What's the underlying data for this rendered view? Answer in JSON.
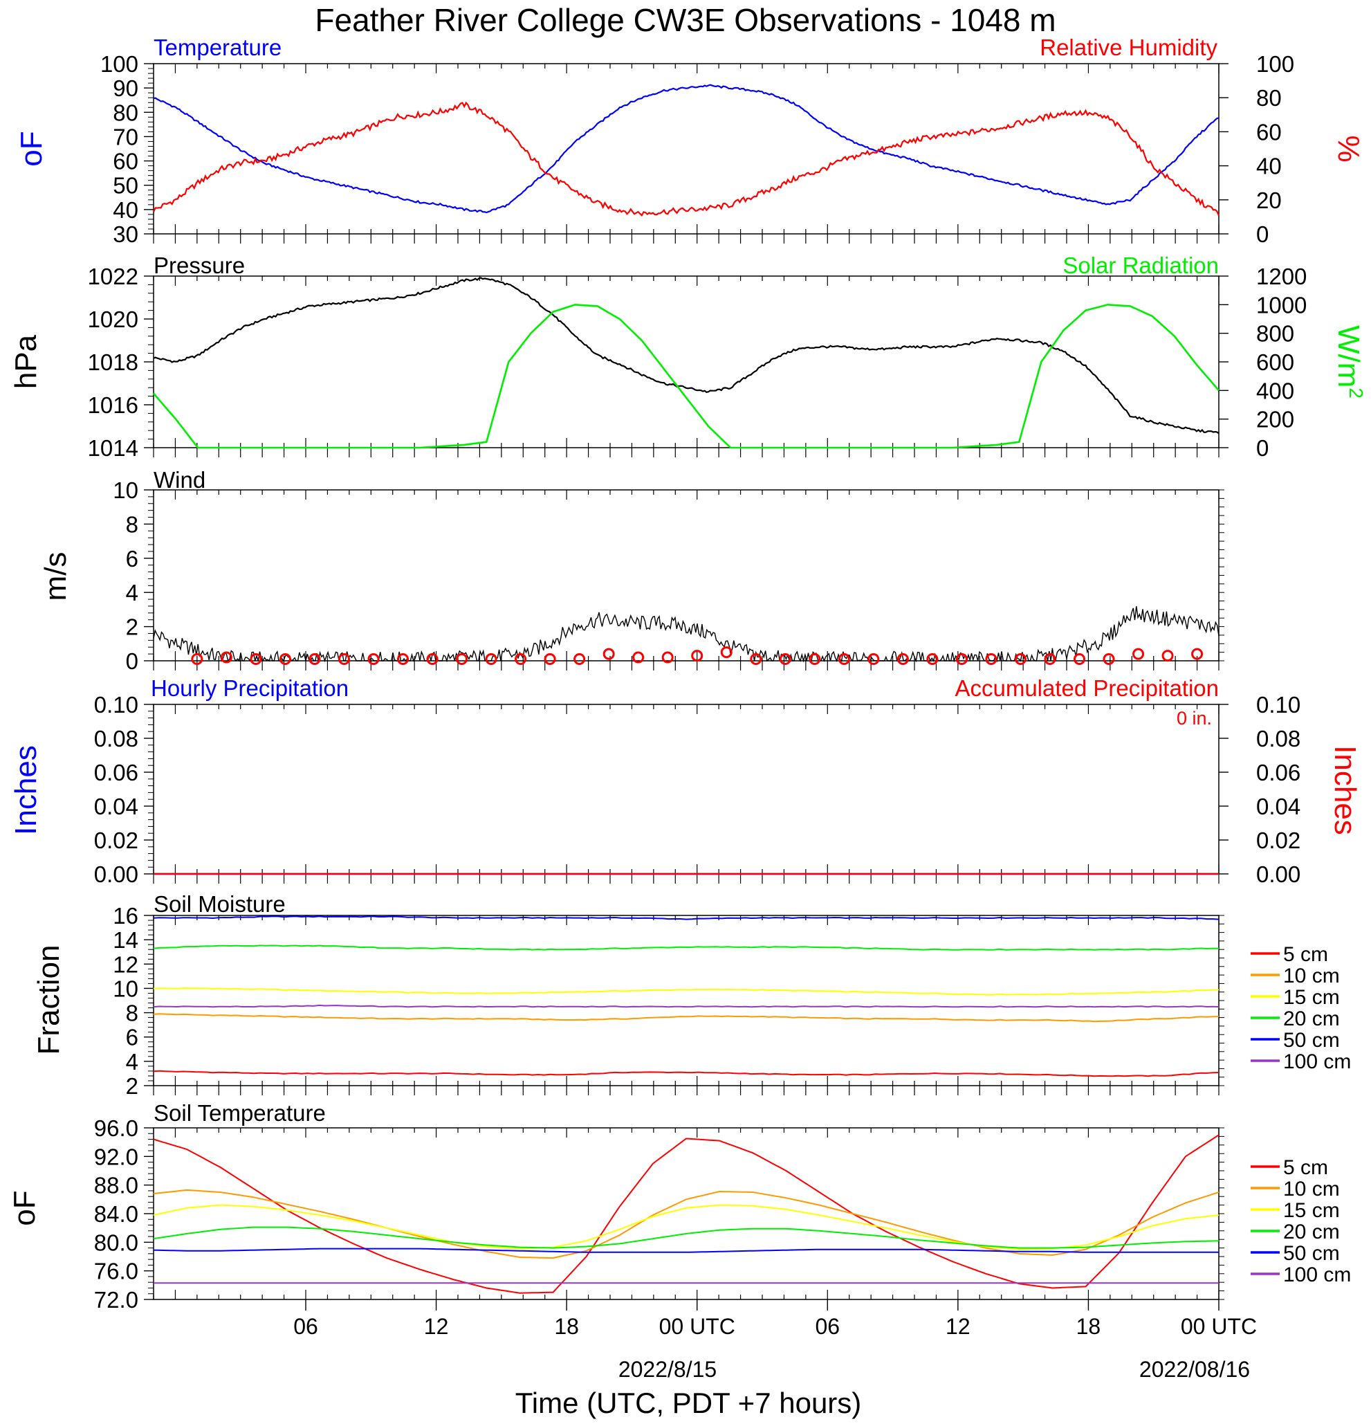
{
  "title": "Feather River College CW3E Observations - 1048 m",
  "x_axis": {
    "label": "Time (UTC, PDT +7 hours)",
    "tick_labels": [
      "06",
      "12",
      "18",
      "00 UTC",
      "06",
      "12",
      "18",
      "00 UTC"
    ],
    "date_labels": [
      "2022/8/15",
      "2022/08/16"
    ]
  },
  "legend_labels": [
    "5 cm",
    "10 cm",
    "15 cm",
    "20 cm",
    "50 cm",
    "100 cm"
  ],
  "colors": {
    "temperature": "#0000ff",
    "humidity": "#ff0000",
    "pressure": "#000000",
    "solar": "#00ee00",
    "depth_5": "#ff0000",
    "depth_10": "#ff9900",
    "depth_15": "#ffff00",
    "depth_20": "#00ee00",
    "depth_50": "#0000ff",
    "depth_100": "#9933cc"
  },
  "chart_data": [
    {
      "type": "line",
      "panel": "temperature-humidity",
      "left_title": "Temperature",
      "right_title": "Relative Humidity",
      "ylabel_left": "oF",
      "ylabel_right": "%",
      "ylim_left": [
        30,
        100
      ],
      "ylim_right": [
        0,
        100
      ],
      "yticks_left": [
        "100",
        "90",
        "80",
        "70",
        "60",
        "50",
        "40",
        "30"
      ],
      "yticks_right": [
        "100",
        "80",
        "60",
        "40",
        "20",
        "0"
      ],
      "x_hours": [
        1,
        2,
        3,
        4,
        5,
        6,
        7,
        8,
        9,
        10,
        11,
        12,
        13,
        14,
        15,
        16,
        17,
        18,
        19,
        20,
        21,
        22,
        23,
        24,
        25,
        26,
        27,
        28,
        29,
        30,
        31,
        32,
        33,
        34,
        35,
        36,
        37,
        38,
        39,
        40,
        41,
        42,
        43,
        44,
        45,
        46,
        47,
        48,
        49
      ],
      "series": [
        {
          "name": "Temperature",
          "axis": "left",
          "values": [
            86,
            82,
            76,
            70,
            64,
            59,
            56,
            53,
            51,
            49,
            47,
            45,
            43,
            42,
            40,
            39,
            42,
            50,
            58,
            68,
            75,
            82,
            86,
            89,
            90,
            91,
            90,
            89,
            87,
            83,
            76,
            70,
            66,
            63,
            61,
            58,
            56,
            54,
            52,
            50,
            48,
            46,
            44,
            42,
            44,
            52,
            60,
            70,
            78
          ]
        },
        {
          "name": "Relative Humidity",
          "axis": "right",
          "values": [
            14,
            20,
            30,
            38,
            42,
            43,
            47,
            52,
            56,
            59,
            64,
            69,
            70,
            72,
            76,
            70,
            60,
            45,
            33,
            25,
            18,
            14,
            12,
            13,
            14,
            15,
            17,
            22,
            27,
            33,
            37,
            43,
            47,
            50,
            54,
            57,
            58,
            60,
            62,
            65,
            68,
            71,
            71,
            68,
            58,
            40,
            30,
            20,
            12
          ]
        }
      ]
    },
    {
      "type": "line",
      "panel": "pressure-solar",
      "left_title": "Pressure",
      "right_title": "Solar Radiation",
      "ylabel_left": "hPa",
      "ylabel_right": "W/m2",
      "ylim_left": [
        1014,
        1022
      ],
      "ylim_right": [
        0,
        1200
      ],
      "yticks_left": [
        "1022",
        "1020",
        "1018",
        "1016",
        "1014"
      ],
      "yticks_right": [
        "1200",
        "1000",
        "800",
        "600",
        "400",
        "200",
        "0"
      ],
      "series": [
        {
          "name": "Pressure",
          "axis": "left",
          "values": [
            1018.2,
            1018.0,
            1018.3,
            1019.0,
            1019.6,
            1020.0,
            1020.3,
            1020.6,
            1020.7,
            1020.8,
            1020.9,
            1021.0,
            1021.2,
            1021.5,
            1021.8,
            1021.9,
            1021.6,
            1021.0,
            1020.2,
            1019.2,
            1018.3,
            1017.9,
            1017.4,
            1017.0,
            1016.8,
            1016.6,
            1016.8,
            1017.5,
            1018.2,
            1018.6,
            1018.7,
            1018.7,
            1018.6,
            1018.6,
            1018.7,
            1018.7,
            1018.7,
            1018.9,
            1019.1,
            1019.0,
            1018.9,
            1018.5,
            1017.8,
            1016.7,
            1015.5,
            1015.2,
            1015.0,
            1014.8,
            1014.7
          ]
        },
        {
          "name": "Solar Radiation",
          "axis": "right",
          "values": [
            380,
            200,
            0,
            0,
            0,
            0,
            0,
            0,
            0,
            0,
            0,
            0,
            0,
            10,
            20,
            40,
            600,
            800,
            950,
            1000,
            990,
            900,
            750,
            550,
            350,
            150,
            0,
            0,
            0,
            0,
            0,
            0,
            0,
            0,
            0,
            0,
            0,
            10,
            20,
            40,
            600,
            820,
            960,
            1000,
            990,
            920,
            780,
            580,
            400
          ]
        }
      ]
    },
    {
      "type": "line",
      "panel": "wind",
      "left_title": "Wind",
      "ylabel_left": "m/s",
      "ylim_left": [
        0,
        10
      ],
      "yticks_left": [
        "10",
        "8",
        "6",
        "4",
        "2",
        "0"
      ],
      "series": [
        {
          "name": "Wind",
          "axis": "left",
          "values": [
            1.6,
            1.0,
            0.6,
            0.2,
            0.1,
            0.1,
            0.1,
            0.1,
            0.1,
            0.1,
            0.1,
            0.1,
            0.1,
            0.1,
            0.2,
            0.2,
            0.3,
            0.5,
            1.2,
            2.0,
            2.4,
            2.3,
            2.2,
            2.2,
            2.0,
            1.6,
            0.8,
            0.4,
            0.2,
            0.1,
            0.1,
            0.1,
            0.1,
            0.1,
            0.1,
            0.1,
            0.1,
            0.1,
            0.1,
            0.1,
            0.2,
            0.4,
            0.8,
            1.3,
            2.8,
            2.6,
            2.4,
            2.2,
            1.8
          ]
        }
      ],
      "station_markers_speed": [
        0.1,
        0.2,
        0.1,
        0.1,
        0.1,
        0.1,
        0.1,
        0.1,
        0.1,
        0.1,
        0.1,
        0.1,
        0.1,
        0.1,
        0.4,
        0.2,
        0.2,
        0.3,
        0.5,
        0.1,
        0.1,
        0.1,
        0.1,
        0.1,
        0.1,
        0.1,
        0.1,
        0.1,
        0.1,
        0.1,
        0.1,
        0.1,
        0.4,
        0.3,
        0.4
      ]
    },
    {
      "type": "line",
      "panel": "precipitation",
      "left_title": "Hourly Precipitation",
      "right_title": "Accumulated Precipitation",
      "annotation": "0 in.",
      "ylabel_left": "Inches",
      "ylabel_right": "Inches",
      "ylim_left": [
        0,
        0.1
      ],
      "ylim_right": [
        0,
        0.1
      ],
      "yticks_left": [
        "0.10",
        "0.08",
        "0.06",
        "0.04",
        "0.02",
        "0.00"
      ],
      "yticks_right": [
        "0.10",
        "0.08",
        "0.06",
        "0.04",
        "0.02",
        "0.00"
      ],
      "series": [
        {
          "name": "Hourly Precipitation",
          "axis": "left",
          "values": [
            0,
            0,
            0,
            0,
            0,
            0,
            0,
            0,
            0,
            0,
            0,
            0,
            0,
            0,
            0,
            0,
            0,
            0,
            0,
            0,
            0,
            0,
            0,
            0,
            0,
            0,
            0,
            0,
            0,
            0,
            0,
            0,
            0,
            0,
            0,
            0,
            0,
            0,
            0,
            0,
            0,
            0,
            0,
            0,
            0,
            0,
            0,
            0,
            0
          ]
        },
        {
          "name": "Accumulated Precipitation",
          "axis": "right",
          "values": [
            0,
            0,
            0,
            0,
            0,
            0,
            0,
            0,
            0,
            0,
            0,
            0,
            0,
            0,
            0,
            0,
            0,
            0,
            0,
            0,
            0,
            0,
            0,
            0,
            0,
            0,
            0,
            0,
            0,
            0,
            0,
            0,
            0,
            0,
            0,
            0,
            0,
            0,
            0,
            0,
            0,
            0,
            0,
            0,
            0,
            0,
            0,
            0,
            0
          ]
        }
      ]
    },
    {
      "type": "line",
      "panel": "soil-moisture",
      "left_title": "Soil Moisture",
      "ylabel_left": "Fraction",
      "ylim_left": [
        2,
        16
      ],
      "yticks_left": [
        "16",
        "14",
        "12",
        "10",
        "8",
        "6",
        "4",
        "2"
      ],
      "series": [
        {
          "name": "5 cm",
          "values": [
            3.2,
            3.1,
            3.0,
            3.0,
            3.0,
            3.0,
            2.9,
            2.9,
            3.1,
            3.1,
            3.0,
            2.9,
            2.9,
            3.0,
            3.0,
            2.9,
            2.8,
            2.8,
            3.1
          ]
        },
        {
          "name": "10 cm",
          "values": [
            7.9,
            7.8,
            7.7,
            7.6,
            7.5,
            7.5,
            7.5,
            7.4,
            7.5,
            7.7,
            7.7,
            7.6,
            7.5,
            7.5,
            7.4,
            7.4,
            7.3,
            7.5,
            7.7
          ]
        },
        {
          "name": "15 cm",
          "values": [
            10.0,
            10.0,
            9.9,
            9.8,
            9.7,
            9.6,
            9.6,
            9.7,
            9.8,
            9.9,
            9.9,
            9.8,
            9.7,
            9.6,
            9.5,
            9.5,
            9.6,
            9.7,
            9.9
          ]
        },
        {
          "name": "20 cm",
          "values": [
            13.3,
            13.5,
            13.5,
            13.5,
            13.3,
            13.3,
            13.2,
            13.2,
            13.3,
            13.4,
            13.4,
            13.4,
            13.3,
            13.2,
            13.2,
            13.2,
            13.2,
            13.2,
            13.3
          ]
        },
        {
          "name": "50 cm",
          "values": [
            15.8,
            15.8,
            15.9,
            15.9,
            15.9,
            15.8,
            15.8,
            15.8,
            15.8,
            15.7,
            15.8,
            15.8,
            15.8,
            15.8,
            15.8,
            15.8,
            15.8,
            15.8,
            15.7
          ]
        },
        {
          "name": "100 cm",
          "values": [
            8.5,
            8.5,
            8.5,
            8.6,
            8.5,
            8.5,
            8.5,
            8.5,
            8.5,
            8.5,
            8.5,
            8.5,
            8.5,
            8.5,
            8.5,
            8.5,
            8.5,
            8.5,
            8.5
          ]
        }
      ]
    },
    {
      "type": "line",
      "panel": "soil-temperature",
      "left_title": "Soil Temperature",
      "ylabel_left": "oF",
      "ylim_left": [
        72,
        96
      ],
      "yticks_left": [
        "96.0",
        "92.0",
        "88.0",
        "84.0",
        "80.0",
        "76.0",
        "72.0"
      ],
      "series": [
        {
          "name": "5 cm",
          "values": [
            94.4,
            93.0,
            90.5,
            87.5,
            84.5,
            82.0,
            79.8,
            77.8,
            76.2,
            74.8,
            73.6,
            72.9,
            73.0,
            78.0,
            85.0,
            91.0,
            94.5,
            94.2,
            92.5,
            90.0,
            87.0,
            84.0,
            81.5,
            79.3,
            77.3,
            75.6,
            74.2,
            73.6,
            73.8,
            78.5,
            85.5,
            92.0,
            95.0
          ]
        },
        {
          "name": "10 cm",
          "values": [
            86.8,
            87.3,
            87.0,
            86.3,
            85.3,
            84.3,
            83.2,
            82.0,
            80.8,
            79.7,
            78.7,
            77.9,
            77.8,
            78.8,
            81.0,
            83.8,
            86.0,
            87.1,
            87.0,
            86.2,
            85.2,
            84.0,
            82.8,
            81.5,
            80.3,
            79.2,
            78.4,
            78.2,
            79.0,
            81.0,
            83.5,
            85.5,
            87.0
          ]
        },
        {
          "name": "15 cm",
          "values": [
            83.8,
            84.8,
            85.2,
            85.0,
            84.5,
            83.8,
            83.0,
            82.0,
            81.0,
            80.0,
            79.4,
            79.1,
            79.3,
            80.2,
            81.8,
            83.6,
            84.8,
            85.2,
            85.1,
            84.6,
            83.8,
            82.9,
            82.0,
            81.0,
            80.1,
            79.4,
            79.0,
            79.1,
            79.6,
            80.8,
            82.3,
            83.3,
            83.8
          ]
        },
        {
          "name": "20 cm",
          "values": [
            80.5,
            81.2,
            81.8,
            82.1,
            82.1,
            81.9,
            81.5,
            81.0,
            80.5,
            80.0,
            79.6,
            79.3,
            79.2,
            79.4,
            79.8,
            80.5,
            81.2,
            81.7,
            81.9,
            81.9,
            81.6,
            81.2,
            80.8,
            80.3,
            79.9,
            79.5,
            79.2,
            79.2,
            79.3,
            79.6,
            79.9,
            80.1,
            80.2
          ]
        },
        {
          "name": "50 cm",
          "values": [
            78.9,
            78.8,
            78.8,
            78.9,
            79.0,
            79.1,
            79.1,
            79.1,
            79.1,
            79.0,
            78.9,
            78.8,
            78.7,
            78.6,
            78.6,
            78.6,
            78.6,
            78.7,
            78.8,
            78.9,
            79.0,
            79.0,
            79.0,
            79.0,
            78.9,
            78.8,
            78.7,
            78.7,
            78.6,
            78.6,
            78.6,
            78.6,
            78.6
          ]
        },
        {
          "name": "100 cm",
          "values": [
            74.3,
            74.3,
            74.3,
            74.3,
            74.3,
            74.3,
            74.3,
            74.3,
            74.3,
            74.3,
            74.3,
            74.3,
            74.3,
            74.3,
            74.3,
            74.3,
            74.3,
            74.3,
            74.3,
            74.3,
            74.3,
            74.3,
            74.3,
            74.3,
            74.3,
            74.3,
            74.3,
            74.3,
            74.3,
            74.3,
            74.3,
            74.3,
            74.3
          ]
        }
      ]
    }
  ]
}
